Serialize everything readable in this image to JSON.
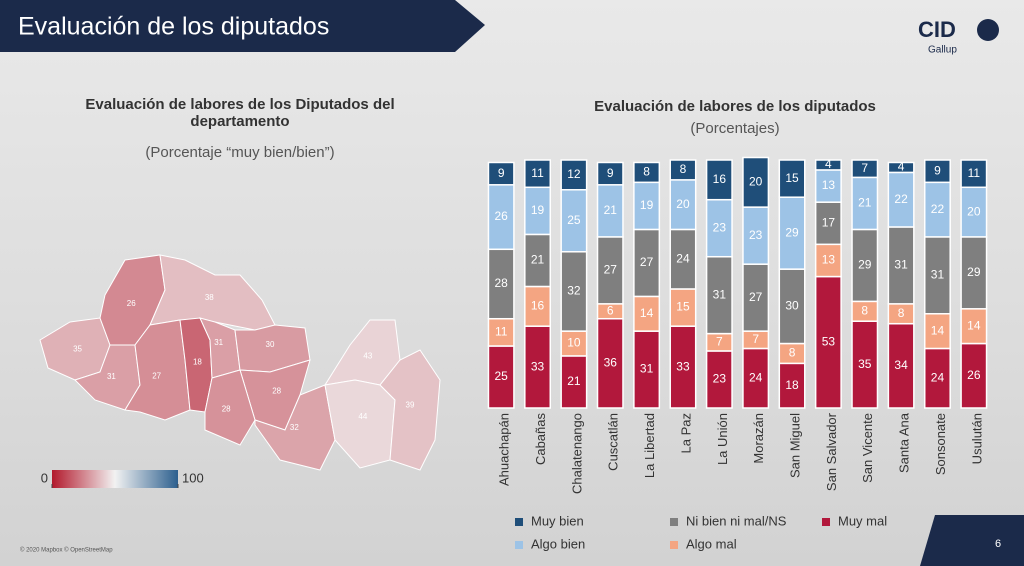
{
  "slide": {
    "title": "Evaluación de los diputados",
    "logo": "CID",
    "logo_sub": "Gallup",
    "page": "6",
    "attribution": "© 2020 Mapbox © OpenStreetMap"
  },
  "chart_data": [
    {
      "type": "map",
      "title": "Evaluación de labores de los Diputados del departamento",
      "subtitle": "(Porcentaje “muy bien/bien”)",
      "values": [
        35,
        31,
        26,
        38,
        27,
        18,
        31,
        30,
        28,
        28,
        32,
        43,
        44,
        39
      ],
      "colorbar": {
        "lim": [
          0,
          100
        ],
        "ticks": [
          0,
          100
        ],
        "colors": [
          "#b2182b",
          "#f2f2f2",
          "#2c5f8e"
        ]
      }
    },
    {
      "type": "stacked-bar",
      "title": "Evaluación de labores de los diputados",
      "subtitle": "(Porcentajes)",
      "categories": [
        "Ahuachapán",
        "Cabañas",
        "Chalatenango",
        "Cuscatlán",
        "La Libertad",
        "La Paz",
        "La Unión",
        "Morazán",
        "San Miguel",
        "San Salvador",
        "San Vicente",
        "Santa Ana",
        "Sonsonate",
        "Usulután"
      ],
      "ylim": [
        0,
        100
      ],
      "series": [
        {
          "name": "Muy bien",
          "color": "#1f4e79",
          "values": [
            9,
            11,
            12,
            9,
            8,
            8,
            16,
            20,
            15,
            4,
            7,
            4,
            9,
            11
          ]
        },
        {
          "name": "Algo bien",
          "color": "#9dc3e6",
          "values": [
            26,
            19,
            25,
            21,
            19,
            20,
            23,
            23,
            29,
            13,
            21,
            22,
            22,
            20
          ]
        },
        {
          "name": "Ni bien ni mal/NS",
          "color": "#7f7f7f",
          "values": [
            28,
            21,
            32,
            27,
            27,
            24,
            31,
            27,
            30,
            17,
            29,
            31,
            31,
            29
          ]
        },
        {
          "name": "Algo mal",
          "color": "#f4a582",
          "values": [
            11,
            16,
            10,
            6,
            14,
            15,
            7,
            7,
            8,
            13,
            8,
            8,
            14,
            14
          ]
        },
        {
          "name": "Muy mal",
          "color": "#b2183c",
          "values": [
            25,
            33,
            21,
            36,
            31,
            33,
            23,
            24,
            18,
            53,
            35,
            34,
            24,
            26
          ]
        }
      ]
    }
  ]
}
